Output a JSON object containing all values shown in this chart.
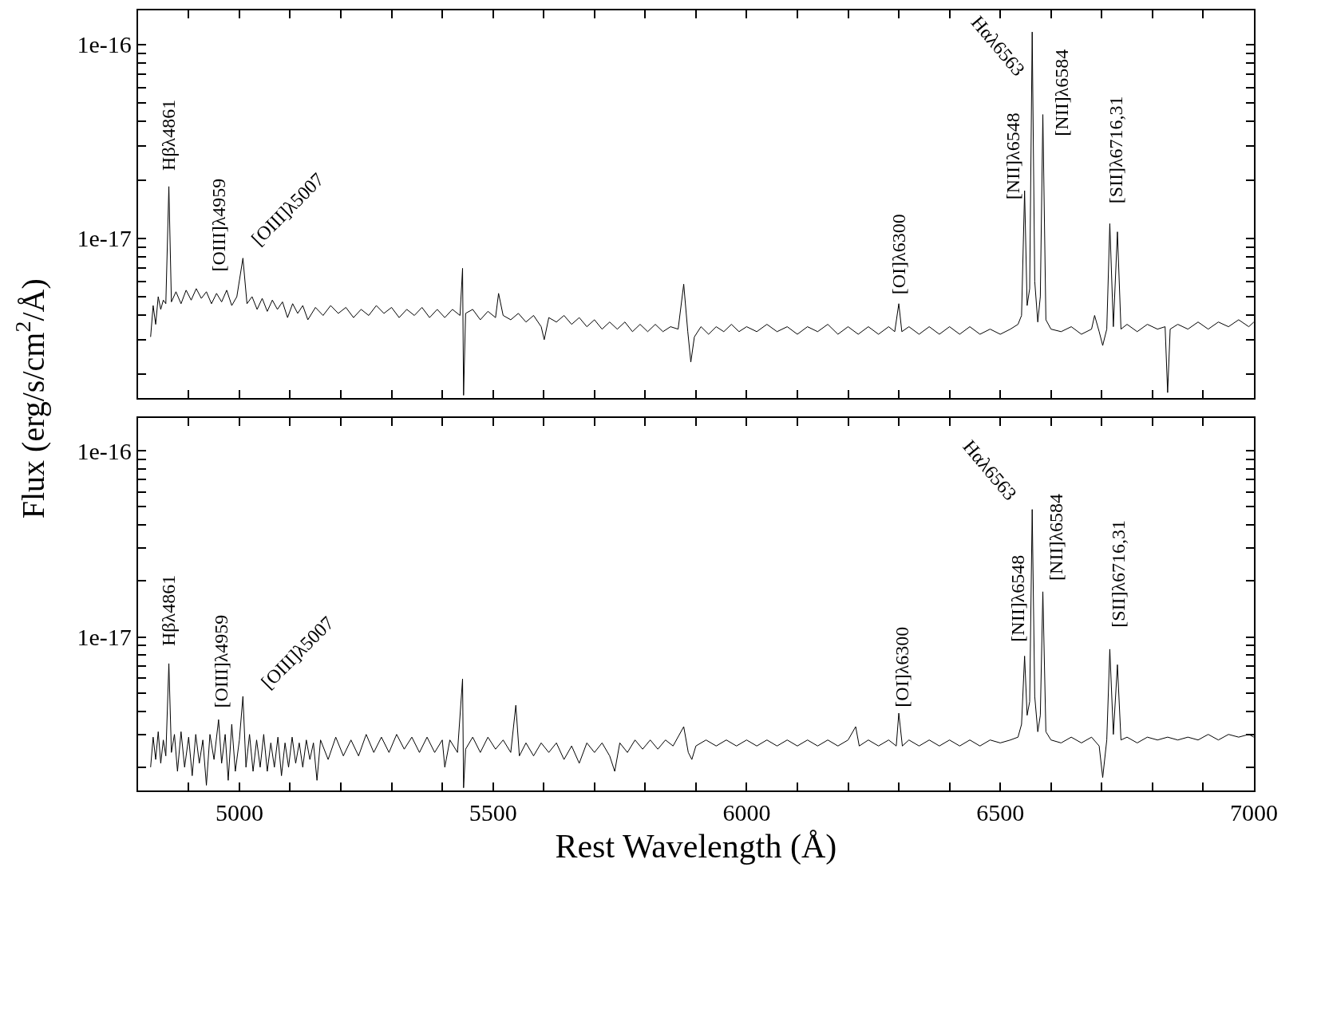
{
  "chart_data": [
    {
      "type": "line",
      "log": true,
      "tick_labels": "y",
      "ylabel": "Flux (erg/s/cm$^{2}$/Å)",
      "xlim": [
        4800,
        7000
      ],
      "xticks": [
        {
          "value": 4800,
          "label": null
        },
        {
          "value": 4900,
          "label": null
        },
        {
          "value": 5000,
          "label": null
        },
        {
          "value": 5100,
          "label": null
        },
        {
          "value": 5200,
          "label": null
        },
        {
          "value": 5300,
          "label": null
        },
        {
          "value": 5400,
          "label": null
        },
        {
          "value": 5500,
          "label": null
        },
        {
          "value": 5600,
          "label": null
        },
        {
          "value": 5700,
          "label": null
        },
        {
          "value": 5800,
          "label": null
        },
        {
          "value": 5900,
          "label": null
        },
        {
          "value": 6000,
          "label": null
        },
        {
          "value": 6100,
          "label": null
        },
        {
          "value": 6200,
          "label": null
        },
        {
          "value": 6300,
          "label": null
        },
        {
          "value": 6400,
          "label": null
        },
        {
          "value": 6500,
          "label": null
        },
        {
          "value": 6600,
          "label": null
        },
        {
          "value": 6700,
          "label": null
        },
        {
          "value": 6800,
          "label": null
        },
        {
          "value": 6900,
          "label": null
        },
        {
          "value": 7000,
          "label": null
        }
      ],
      "ylim": [
        1.5e-18,
        1.5e-16
      ],
      "yticks": [
        {
          "value": 2e-18,
          "label": null
        },
        {
          "value": 3e-18,
          "label": null
        },
        {
          "value": 4e-18,
          "label": null
        },
        {
          "value": 5e-18,
          "label": null
        },
        {
          "value": 6e-18,
          "label": null
        },
        {
          "value": 7e-18,
          "label": null
        },
        {
          "value": 8e-18,
          "label": null
        },
        {
          "value": 9e-18,
          "label": null
        },
        {
          "value": 1e-17,
          "label": "1e-17"
        },
        {
          "value": 2e-17,
          "label": null
        },
        {
          "value": 3e-17,
          "label": null
        },
        {
          "value": 4e-17,
          "label": null
        },
        {
          "value": 5e-17,
          "label": null
        },
        {
          "value": 6e-17,
          "label": null
        },
        {
          "value": 7e-17,
          "label": null
        },
        {
          "value": 8e-17,
          "label": null
        },
        {
          "value": 9e-17,
          "label": null
        },
        {
          "value": 1e-16,
          "label": "1e-16"
        }
      ],
      "x": [
        4825,
        4830,
        4835,
        4840,
        4845,
        4850,
        4855,
        4861,
        4866,
        4875,
        4885,
        4895,
        4905,
        4915,
        4925,
        4935,
        4945,
        4955,
        4965,
        4975,
        4985,
        4995,
        5007,
        5015,
        5025,
        5035,
        5045,
        5055,
        5065,
        5075,
        5085,
        5095,
        5105,
        5115,
        5125,
        5135,
        5150,
        5165,
        5180,
        5195,
        5210,
        5225,
        5240,
        5255,
        5270,
        5285,
        5300,
        5315,
        5330,
        5345,
        5360,
        5375,
        5390,
        5405,
        5420,
        5435,
        5440,
        5442,
        5446,
        5460,
        5475,
        5490,
        5505,
        5511,
        5520,
        5535,
        5550,
        5565,
        5580,
        5595,
        5601,
        5610,
        5625,
        5640,
        5655,
        5670,
        5685,
        5700,
        5715,
        5730,
        5745,
        5760,
        5775,
        5790,
        5805,
        5820,
        5835,
        5850,
        5865,
        5876,
        5884,
        5890,
        5897,
        5910,
        5925,
        5940,
        5955,
        5970,
        5985,
        6000,
        6020,
        6040,
        6060,
        6080,
        6100,
        6120,
        6140,
        6160,
        6180,
        6200,
        6220,
        6240,
        6260,
        6280,
        6292,
        6300,
        6306,
        6320,
        6340,
        6360,
        6380,
        6400,
        6420,
        6440,
        6460,
        6480,
        6500,
        6520,
        6535,
        6542,
        6548,
        6553,
        6558,
        6563,
        6568,
        6574,
        6579,
        6584,
        6590,
        6600,
        6620,
        6640,
        6660,
        6680,
        6686,
        6695,
        6702,
        6710,
        6716,
        6723,
        6731,
        6738,
        6750,
        6770,
        6790,
        6810,
        6825,
        6830,
        6835,
        6850,
        6870,
        6890,
        6910,
        6930,
        6950,
        6970,
        6990,
        7000
      ],
      "series": [
        {
          "color": "#000000",
          "values": [
            3.1e-18,
            4.5e-18,
            3.6e-18,
            5e-18,
            4.3e-18,
            4.8e-18,
            4.6e-18,
            1.85e-17,
            4.7e-18,
            5.3e-18,
            4.6e-18,
            5.4e-18,
            4.8e-18,
            5.5e-18,
            4.9e-18,
            5.3e-18,
            4.6e-18,
            5.2e-18,
            4.7e-18,
            5.4e-18,
            4.5e-18,
            5e-18,
            7.9e-18,
            4.6e-18,
            5e-18,
            4.3e-18,
            4.9e-18,
            4.2e-18,
            4.8e-18,
            4.3e-18,
            4.7e-18,
            3.9e-18,
            4.6e-18,
            4.1e-18,
            4.5e-18,
            3.8e-18,
            4.4e-18,
            4e-18,
            4.5e-18,
            4.1e-18,
            4.4e-18,
            3.9e-18,
            4.3e-18,
            4e-18,
            4.5e-18,
            4.1e-18,
            4.4e-18,
            3.9e-18,
            4.3e-18,
            4e-18,
            4.4e-18,
            3.9e-18,
            4.3e-18,
            3.9e-18,
            4.3e-18,
            4e-18,
            7e-18,
            1.55e-18,
            4.1e-18,
            4.3e-18,
            3.8e-18,
            4.2e-18,
            3.9e-18,
            5.2e-18,
            4e-18,
            3.8e-18,
            4.1e-18,
            3.7e-18,
            4e-18,
            3.5e-18,
            3e-18,
            3.9e-18,
            3.7e-18,
            4e-18,
            3.6e-18,
            3.9e-18,
            3.5e-18,
            3.8e-18,
            3.4e-18,
            3.7e-18,
            3.4e-18,
            3.7e-18,
            3.3e-18,
            3.6e-18,
            3.3e-18,
            3.6e-18,
            3.3e-18,
            3.5e-18,
            3.4e-18,
            5.8e-18,
            3.3e-18,
            2.3e-18,
            3.1e-18,
            3.5e-18,
            3.2e-18,
            3.5e-18,
            3.3e-18,
            3.6e-18,
            3.3e-18,
            3.5e-18,
            3.3e-18,
            3.6e-18,
            3.3e-18,
            3.5e-18,
            3.2e-18,
            3.5e-18,
            3.3e-18,
            3.6e-18,
            3.2e-18,
            3.5e-18,
            3.2e-18,
            3.5e-18,
            3.2e-18,
            3.5e-18,
            3.3e-18,
            4.6e-18,
            3.3e-18,
            3.5e-18,
            3.2e-18,
            3.5e-18,
            3.2e-18,
            3.5e-18,
            3.2e-18,
            3.5e-18,
            3.2e-18,
            3.4e-18,
            3.2e-18,
            3.4e-18,
            3.6e-18,
            4e-18,
            1.76e-17,
            4.5e-18,
            5.5e-18,
            1.16e-16,
            6e-18,
            3.7e-18,
            5e-18,
            4.35e-17,
            3.8e-18,
            3.4e-18,
            3.3e-18,
            3.5e-18,
            3.2e-18,
            3.4e-18,
            4e-18,
            3.3e-18,
            2.8e-18,
            3.4e-18,
            1.19e-17,
            3.5e-18,
            1.08e-17,
            3.4e-18,
            3.6e-18,
            3.3e-18,
            3.6e-18,
            3.4e-18,
            3.5e-18,
            1.6e-18,
            3.4e-18,
            3.6e-18,
            3.4e-18,
            3.7e-18,
            3.4e-18,
            3.7e-18,
            3.5e-18,
            3.8e-18,
            3.5e-18,
            3.7e-18
          ]
        }
      ],
      "annotations": [
        {
          "text": "Hβλ4861",
          "x": 4861,
          "y": 1.85e-17
        },
        {
          "text": "[OIII]λ4959",
          "x": 4955,
          "y": 5.2e-18
        },
        {
          "text": "[OIII]λ5007",
          "x": 5007,
          "y": 7.9e-18
        },
        {
          "text": "[OI]λ6300",
          "x": 6300,
          "y": 4.6e-18
        },
        {
          "text": "Hαλ6563",
          "x": 6563,
          "y": 1.16e-16
        },
        {
          "text": "[NII]λ6548",
          "x": 6548,
          "y": 1.76e-17
        },
        {
          "text": "[NII]λ6584",
          "x": 6584,
          "y": 4.35e-17
        },
        {
          "text": "[SII]λ6716,31",
          "x": 6716,
          "y": 1.19e-17
        }
      ]
    },
    {
      "type": "line",
      "log": true,
      "xlabel": "Rest Wavelength (Å)",
      "xlim": [
        4800,
        7000
      ],
      "xticks": [
        {
          "value": 4800,
          "label": null
        },
        {
          "value": 4900,
          "label": null
        },
        5000,
        {
          "value": 5100,
          "label": null
        },
        {
          "value": 5200,
          "label": null
        },
        {
          "value": 5300,
          "label": null
        },
        {
          "value": 5400,
          "label": null
        },
        5500,
        {
          "value": 5600,
          "label": null
        },
        {
          "value": 5700,
          "label": null
        },
        {
          "value": 5800,
          "label": null
        },
        {
          "value": 5900,
          "label": null
        },
        6000,
        {
          "value": 6100,
          "label": null
        },
        {
          "value": 6200,
          "label": null
        },
        {
          "value": 6300,
          "label": null
        },
        {
          "value": 6400,
          "label": null
        },
        6500,
        {
          "value": 6600,
          "label": null
        },
        {
          "value": 6700,
          "label": null
        },
        {
          "value": 6800,
          "label": null
        },
        {
          "value": 6900,
          "label": null
        },
        7000
      ],
      "ylim": [
        1.5e-18,
        1.5e-16
      ],
      "yticks": [
        {
          "value": 2e-18,
          "label": null
        },
        {
          "value": 3e-18,
          "label": null
        },
        {
          "value": 4e-18,
          "label": null
        },
        {
          "value": 5e-18,
          "label": null
        },
        {
          "value": 6e-18,
          "label": null
        },
        {
          "value": 7e-18,
          "label": null
        },
        {
          "value": 8e-18,
          "label": null
        },
        {
          "value": 9e-18,
          "label": null
        },
        {
          "value": 1e-17,
          "label": "1e-17"
        },
        {
          "value": 2e-17,
          "label": null
        },
        {
          "value": 3e-17,
          "label": null
        },
        {
          "value": 4e-17,
          "label": null
        },
        {
          "value": 5e-17,
          "label": null
        },
        {
          "value": 6e-17,
          "label": null
        },
        {
          "value": 7e-17,
          "label": null
        },
        {
          "value": 8e-17,
          "label": null
        },
        {
          "value": 9e-17,
          "label": null
        },
        {
          "value": 1e-16,
          "label": "1e-16"
        }
      ],
      "x": [
        4825,
        4830,
        4835,
        4840,
        4845,
        4850,
        4855,
        4861,
        4866,
        4872,
        4878,
        4885,
        4892,
        4900,
        4907,
        4914,
        4921,
        4928,
        4935,
        4942,
        4950,
        4959,
        4965,
        4972,
        4978,
        4985,
        4992,
        5000,
        5007,
        5013,
        5020,
        5027,
        5034,
        5041,
        5048,
        5055,
        5062,
        5069,
        5076,
        5083,
        5090,
        5097,
        5104,
        5111,
        5118,
        5125,
        5132,
        5139,
        5146,
        5153,
        5160,
        5175,
        5190,
        5205,
        5220,
        5235,
        5250,
        5265,
        5280,
        5295,
        5310,
        5325,
        5340,
        5355,
        5370,
        5385,
        5400,
        5405,
        5415,
        5430,
        5440,
        5442,
        5446,
        5460,
        5475,
        5490,
        5505,
        5520,
        5535,
        5545,
        5552,
        5565,
        5580,
        5595,
        5610,
        5625,
        5640,
        5655,
        5670,
        5685,
        5700,
        5715,
        5730,
        5740,
        5750,
        5765,
        5780,
        5795,
        5810,
        5825,
        5840,
        5855,
        5876,
        5885,
        5892,
        5900,
        5920,
        5940,
        5960,
        5980,
        6000,
        6020,
        6040,
        6060,
        6080,
        6100,
        6120,
        6140,
        6160,
        6180,
        6200,
        6215,
        6222,
        6240,
        6260,
        6280,
        6295,
        6300,
        6307,
        6320,
        6340,
        6360,
        6380,
        6400,
        6420,
        6440,
        6460,
        6480,
        6500,
        6520,
        6535,
        6542,
        6548,
        6553,
        6558,
        6563,
        6568,
        6574,
        6579,
        6584,
        6590,
        6600,
        6620,
        6640,
        6660,
        6680,
        6695,
        6702,
        6710,
        6716,
        6723,
        6731,
        6738,
        6750,
        6770,
        6790,
        6810,
        6830,
        6850,
        6870,
        6890,
        6910,
        6930,
        6950,
        6970,
        6990,
        7000
      ],
      "series": [
        {
          "color": "#000000",
          "values": [
            2e-18,
            2.9e-18,
            2.2e-18,
            3.1e-18,
            2.1e-18,
            2.8e-18,
            2.3e-18,
            7.2e-18,
            2.4e-18,
            3e-18,
            1.9e-18,
            3.1e-18,
            2e-18,
            2.9e-18,
            1.8e-18,
            3e-18,
            2.1e-18,
            2.8e-18,
            1.6e-18,
            3e-18,
            2.2e-18,
            3.6e-18,
            2.1e-18,
            3e-18,
            1.7e-18,
            3.4e-18,
            1.9e-18,
            2.8e-18,
            4.8e-18,
            2e-18,
            3e-18,
            1.9e-18,
            2.8e-18,
            2e-18,
            3e-18,
            1.9e-18,
            2.7e-18,
            2e-18,
            2.9e-18,
            1.8e-18,
            2.7e-18,
            2e-18,
            2.9e-18,
            2.1e-18,
            2.7e-18,
            2e-18,
            2.8e-18,
            2.2e-18,
            2.7e-18,
            1.7e-18,
            2.8e-18,
            2.2e-18,
            2.9e-18,
            2.3e-18,
            2.8e-18,
            2.3e-18,
            3e-18,
            2.4e-18,
            2.9e-18,
            2.4e-18,
            3e-18,
            2.5e-18,
            2.9e-18,
            2.4e-18,
            2.9e-18,
            2.4e-18,
            2.8e-18,
            2e-18,
            2.8e-18,
            2.4e-18,
            5.95e-18,
            1.55e-18,
            2.5e-18,
            2.9e-18,
            2.4e-18,
            2.9e-18,
            2.5e-18,
            2.8e-18,
            2.4e-18,
            4.3e-18,
            2.3e-18,
            2.7e-18,
            2.3e-18,
            2.7e-18,
            2.4e-18,
            2.7e-18,
            2.2e-18,
            2.6e-18,
            2.1e-18,
            2.7e-18,
            2.4e-18,
            2.7e-18,
            2.3e-18,
            1.9e-18,
            2.7e-18,
            2.4e-18,
            2.8e-18,
            2.5e-18,
            2.8e-18,
            2.5e-18,
            2.8e-18,
            2.6e-18,
            3.3e-18,
            2.4e-18,
            2.2e-18,
            2.6e-18,
            2.8e-18,
            2.6e-18,
            2.8e-18,
            2.6e-18,
            2.8e-18,
            2.6e-18,
            2.8e-18,
            2.6e-18,
            2.8e-18,
            2.6e-18,
            2.8e-18,
            2.6e-18,
            2.8e-18,
            2.6e-18,
            2.8e-18,
            3.3e-18,
            2.6e-18,
            2.8e-18,
            2.6e-18,
            2.8e-18,
            2.6e-18,
            3.9e-18,
            2.6e-18,
            2.8e-18,
            2.6e-18,
            2.8e-18,
            2.6e-18,
            2.8e-18,
            2.6e-18,
            2.8e-18,
            2.6e-18,
            2.8e-18,
            2.7e-18,
            2.8e-18,
            2.9e-18,
            3.4e-18,
            7.9e-18,
            3.8e-18,
            4.5e-18,
            4.84e-17,
            4.8e-18,
            3.1e-18,
            3.8e-18,
            1.75e-17,
            3.1e-18,
            2.8e-18,
            2.7e-18,
            2.9e-18,
            2.7e-18,
            2.9e-18,
            2.6e-18,
            1.76e-18,
            2.8e-18,
            8.6e-18,
            3e-18,
            7.1e-18,
            2.8e-18,
            2.9e-18,
            2.7e-18,
            2.9e-18,
            2.8e-18,
            2.9e-18,
            2.8e-18,
            2.9e-18,
            2.8e-18,
            3e-18,
            2.8e-18,
            3e-18,
            2.9e-18,
            3e-18,
            2.9e-18
          ]
        }
      ],
      "annotations": [
        {
          "text": "Hβλ4861",
          "x": 4861,
          "y": 7.2e-18
        },
        {
          "text": "[OIII]λ4959",
          "x": 4959,
          "y": 3.6e-18
        },
        {
          "text": "[OIII]λ5007",
          "x": 5007,
          "y": 4.8e-18
        },
        {
          "text": "[OI]λ6300",
          "x": 6300,
          "y": 3.9e-18
        },
        {
          "text": "Hαλ6563",
          "x": 6563,
          "y": 4.84e-17
        },
        {
          "text": "[NII]λ6548",
          "x": 6548,
          "y": 7.9e-18
        },
        {
          "text": "[NII]λ6584",
          "x": 6584,
          "y": 1.75e-17
        },
        {
          "text": "[SII]λ6716,31",
          "x": 6716,
          "y": 8.6e-18
        }
      ]
    }
  ]
}
